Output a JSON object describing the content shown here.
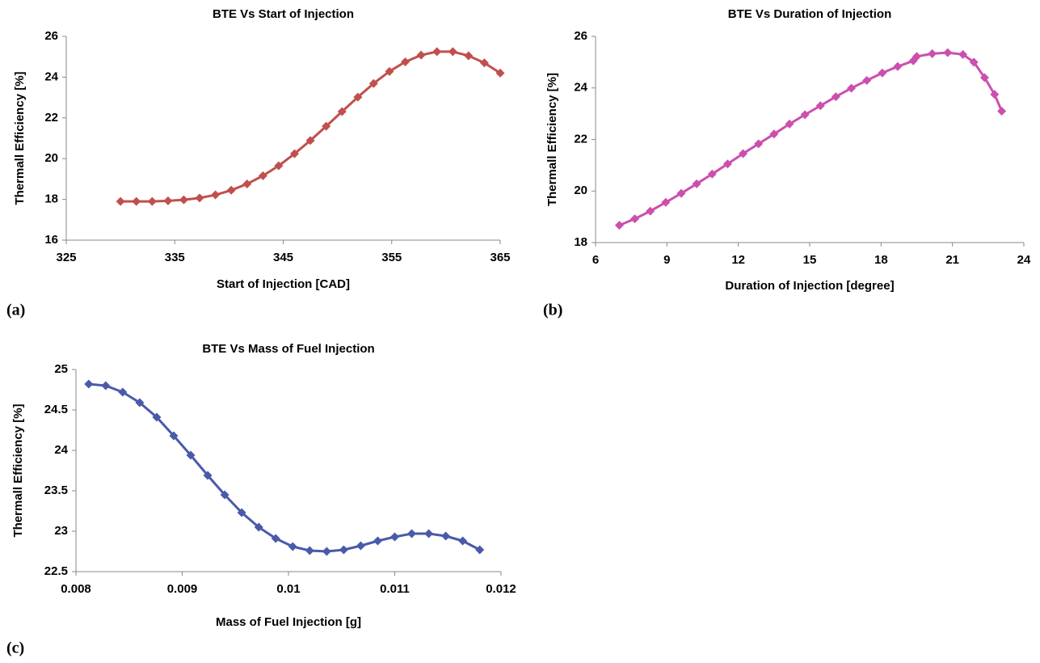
{
  "chart_data": [
    {
      "type": "line",
      "label": "(a)",
      "title": "BTE Vs Start of Injection",
      "xlabel": "Start of Injection  [CAD]",
      "ylabel": "Thermall Efficiency [%]",
      "x": [
        330,
        331.46,
        332.92,
        334.38,
        335.83,
        337.29,
        338.75,
        340.21,
        341.67,
        343.13,
        344.58,
        346.04,
        347.5,
        348.96,
        350.42,
        351.88,
        353.33,
        354.79,
        356.25,
        357.71,
        359.17,
        360.63,
        362.08,
        363.54,
        365
      ],
      "values": [
        17.9,
        17.9,
        17.9,
        17.93,
        17.98,
        18.07,
        18.22,
        18.45,
        18.76,
        19.16,
        19.65,
        20.24,
        20.89,
        21.59,
        22.31,
        23.02,
        23.69,
        24.28,
        24.75,
        25.08,
        25.25,
        25.25,
        25.05,
        24.7,
        24.2
      ],
      "color": "#c0504d",
      "xlim": [
        325,
        365
      ],
      "xticks": [
        325,
        335,
        345,
        355,
        365
      ],
      "ylim": [
        16,
        26
      ],
      "yticks": [
        16,
        18,
        20,
        22,
        24,
        26
      ]
    },
    {
      "type": "line",
      "label": "(b)",
      "title": "BTE Vs Duration of Injection",
      "xlabel": "Duration of Injection  [degree]",
      "ylabel": "Thermall Efficiency [%]",
      "x": [
        7,
        7.65,
        8.3,
        8.95,
        9.6,
        10.25,
        10.9,
        11.55,
        12.2,
        12.85,
        13.5,
        14.15,
        14.8,
        15.45,
        16.1,
        16.75,
        17.4,
        18.05,
        18.7,
        19.35,
        19.5,
        20.15,
        20.8,
        21.44,
        21.9,
        22.35,
        22.77,
        23.07
      ],
      "values": [
        18.67,
        18.92,
        19.22,
        19.56,
        19.91,
        20.28,
        20.66,
        21.05,
        21.45,
        21.83,
        22.21,
        22.6,
        22.96,
        23.31,
        23.66,
        23.99,
        24.29,
        24.58,
        24.83,
        25.05,
        25.22,
        25.33,
        25.37,
        25.3,
        25.0,
        24.4,
        23.75,
        23.1
      ],
      "color": "#cc4fae",
      "xlim": [
        6,
        24
      ],
      "xticks": [
        6,
        9,
        12,
        15,
        18,
        21,
        24
      ],
      "ylim": [
        18,
        26
      ],
      "yticks": [
        18,
        20,
        22,
        24,
        26
      ]
    },
    {
      "type": "line",
      "label": "(c)",
      "title": "BTE Vs Mass of Fuel Injection",
      "xlabel": "Mass of Fuel Injection [g]",
      "ylabel": "Thermall Efficiency [%]",
      "x": [
        0.00812,
        0.00828,
        0.00844,
        0.0086,
        0.00876,
        0.00892,
        0.00908,
        0.00924,
        0.0094,
        0.00956,
        0.00972,
        0.00988,
        0.01004,
        0.0102,
        0.01036,
        0.01052,
        0.01068,
        0.01084,
        0.011,
        0.01116,
        0.01132,
        0.01148,
        0.01164,
        0.0118
      ],
      "values": [
        24.82,
        24.8,
        24.72,
        24.59,
        24.41,
        24.18,
        23.94,
        23.69,
        23.45,
        23.23,
        23.05,
        22.91,
        22.81,
        22.76,
        22.75,
        22.77,
        22.82,
        22.88,
        22.93,
        22.97,
        22.97,
        22.94,
        22.88,
        22.77
      ],
      "color": "#4a5aaa",
      "xlim": [
        0.008,
        0.012
      ],
      "xticks": [
        0.008,
        0.009,
        0.01,
        0.011,
        0.012
      ],
      "ylim": [
        22.5,
        25
      ],
      "yticks": [
        22.5,
        23,
        23.5,
        24,
        24.5,
        25
      ]
    }
  ]
}
